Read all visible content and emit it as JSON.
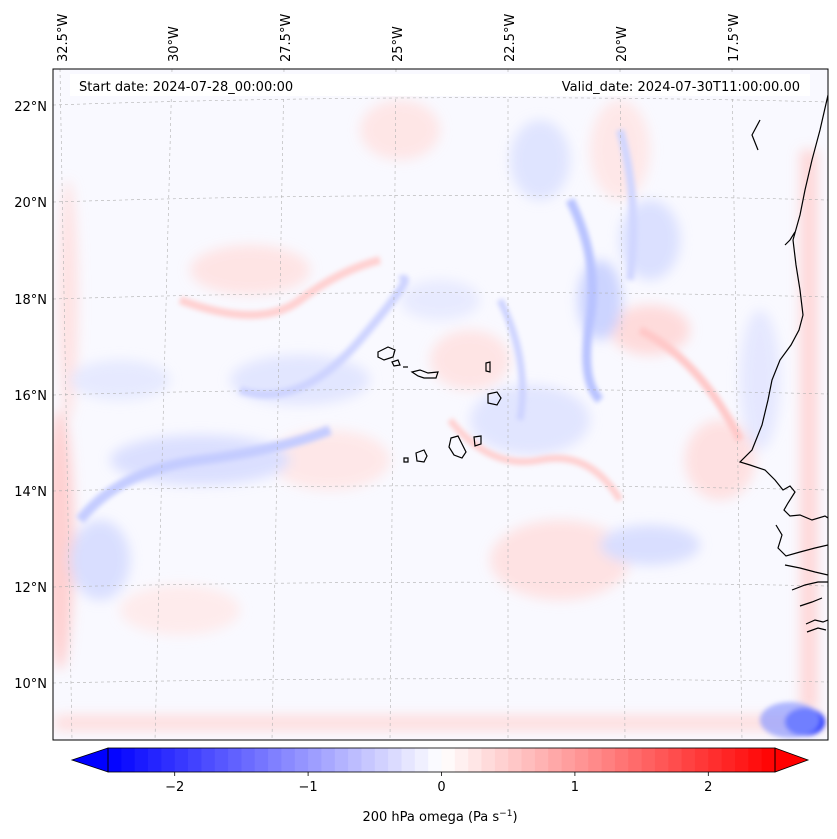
{
  "map": {
    "start_date": "Start date: 2024-07-28_00:00:00",
    "valid_date": "Valid_date: 2024-07-30T11:00:00.00",
    "lon_labels": [
      "32.5°W",
      "30°W",
      "27.5°W",
      "25°W",
      "22.5°W",
      "20°W",
      "17.5°W"
    ],
    "lat_labels": [
      "22°N",
      "20°N",
      "18°N",
      "16°N",
      "14°N",
      "12°N",
      "10°N"
    ],
    "coastline_color": "#000000",
    "gridline_color": "#b0b0b0"
  },
  "colorbar": {
    "label_prefix": "200 hPa omega (Pa s",
    "label_exp": "−1",
    "label_suffix": ")",
    "ticks": [
      "−2",
      "−1",
      "0",
      "1",
      "2"
    ],
    "tick_values": [
      -2,
      -1,
      0,
      1,
      2
    ],
    "range": [
      -2.5,
      2.5
    ],
    "min_color": "#0000ff",
    "mid_color": "#ffffff",
    "max_color": "#ff0000",
    "extend": "both"
  }
}
